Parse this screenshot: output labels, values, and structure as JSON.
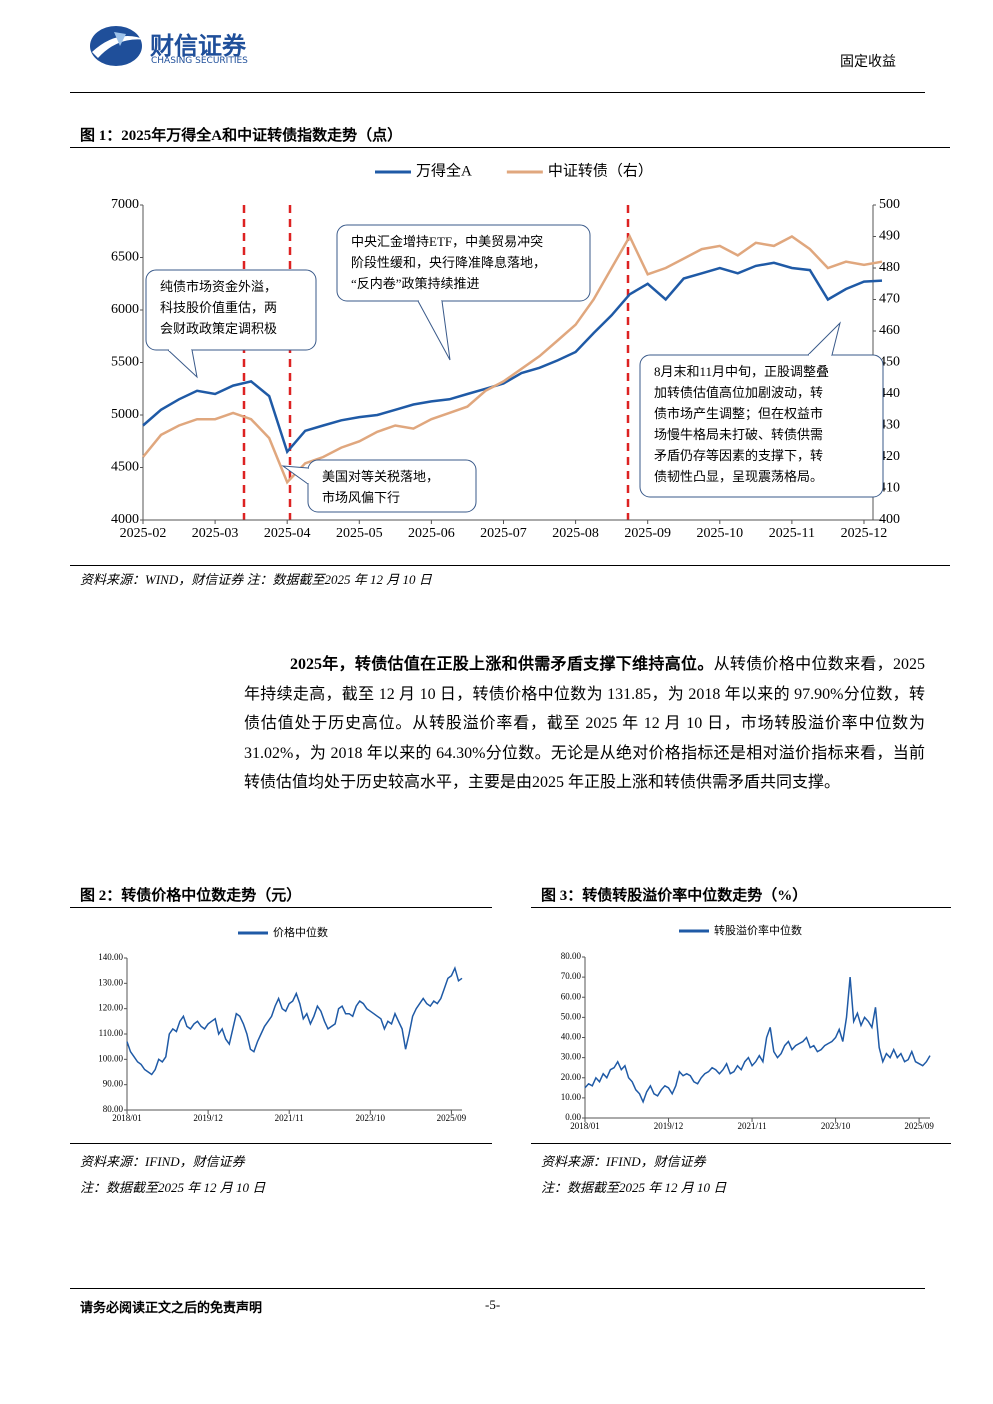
{
  "header": {
    "company": "财信证券",
    "company_en": "CHASING SECURITIES",
    "section": "固定收益"
  },
  "chart_data": [
    {
      "type": "line",
      "title": "图 1：2025年万得全A和中证转债指数走势（点）",
      "categories": [
        "2025-02",
        null,
        null,
        null,
        "2025-03",
        null,
        null,
        null,
        "2025-04",
        null,
        null,
        null,
        "2025-05",
        null,
        null,
        null,
        "2025-06",
        null,
        null,
        null,
        "2025-07",
        null,
        null,
        null,
        "2025-08",
        null,
        null,
        null,
        "2025-09",
        null,
        null,
        null,
        "2025-10",
        null,
        null,
        null,
        "2025-11",
        null,
        null,
        null,
        "2025-12",
        null
      ],
      "series": [
        {
          "name": "万得全A",
          "color": "#1f5aa6",
          "values": [
            4900,
            5050,
            5150,
            5230,
            5200,
            5280,
            5320,
            5180,
            4650,
            4850,
            4900,
            4950,
            4980,
            5000,
            5050,
            5100,
            5130,
            5150,
            5200,
            5250,
            5300,
            5400,
            5450,
            5520,
            5600,
            5780,
            5950,
            6150,
            6250,
            6100,
            6300,
            6350,
            6400,
            6350,
            6420,
            6450,
            6400,
            6380,
            6100,
            6200,
            6270,
            6280
          ]
        },
        {
          "name": "中证转债（右）",
          "color": "#e0a77e",
          "axis": "y2",
          "values": [
            420,
            427,
            430,
            432,
            432,
            434,
            432,
            426,
            412,
            418,
            420,
            423,
            425,
            428,
            430,
            429,
            432,
            434,
            436,
            441,
            444,
            448,
            452,
            457,
            462,
            470,
            480,
            490,
            478,
            480,
            483,
            486,
            487,
            484,
            488,
            487,
            490,
            486,
            480,
            482,
            481,
            482
          ]
        }
      ],
      "ylim": [
        4000,
        7000
      ],
      "yticks": [
        4000,
        4500,
        5000,
        5500,
        6000,
        6500,
        7000
      ],
      "y2lim": [
        400,
        500
      ],
      "y2ticks": [
        400,
        410,
        420,
        430,
        440,
        450,
        460,
        470,
        480,
        490,
        500
      ],
      "annotations": [
        {
          "lines": [
            "纯债市场资金外溢，",
            "科技股价值重估，两",
            "会财政政策定调积极"
          ]
        },
        {
          "lines": [
            "中央汇金增持ETF，中美贸易冲突",
            "阶段性缓和，央行降准降息落地，",
            "“反内卷”政策持续推进"
          ]
        },
        {
          "lines": [
            "美国对等关税落地，",
            "市场风偏下行"
          ]
        },
        {
          "lines": [
            "8月末和11月中旬，正股调整叠",
            "加转债估值高位加剧波动，转",
            "债市场产生调整；但在权益市",
            "场慢牛格局未打破、转债供需",
            "矛盾仍存等因素的支撑下，转",
            "债韧性凸显，呈现震荡格局。"
          ]
        }
      ],
      "notes": [
        "资料来源：WIND，财信证券 注：数据截至2025 年 12 月 10 日"
      ]
    },
    {
      "type": "line",
      "title": "图 2：转债价格中位数走势（元）",
      "categories": [
        "2018/01",
        null,
        null,
        null,
        null,
        null,
        null,
        null,
        null,
        null,
        null,
        null,
        null,
        null,
        null,
        null,
        null,
        null,
        null,
        null,
        null,
        null,
        null,
        "2019/12",
        null,
        null,
        null,
        null,
        null,
        null,
        null,
        null,
        null,
        null,
        null,
        null,
        null,
        null,
        null,
        null,
        null,
        null,
        null,
        null,
        null,
        null,
        "2021/11",
        null,
        null,
        null,
        null,
        null,
        null,
        null,
        null,
        null,
        null,
        null,
        null,
        null,
        null,
        null,
        null,
        null,
        null,
        null,
        null,
        null,
        null,
        "2023/10",
        null,
        null,
        null,
        null,
        null,
        null,
        null,
        null,
        null,
        null,
        null,
        null,
        null,
        null,
        null,
        null,
        null,
        null,
        null,
        null,
        null,
        null,
        "2025/09",
        null,
        null,
        null
      ],
      "series": [
        {
          "name": "价格中位数",
          "color": "#1f5aa6",
          "values": [
            107,
            103,
            101,
            99,
            98,
            96,
            95,
            94,
            96,
            100,
            99,
            101,
            110,
            112,
            111,
            115,
            117,
            113,
            112,
            114,
            115,
            113,
            112,
            114,
            115,
            116,
            110,
            112,
            108,
            106,
            112,
            118,
            117,
            114,
            110,
            104,
            103,
            107,
            110,
            113,
            115,
            117,
            121,
            124,
            120,
            119,
            122,
            123,
            126,
            122,
            116,
            118,
            114,
            117,
            121,
            119,
            115,
            112,
            113,
            114,
            120,
            121,
            118,
            118,
            117,
            121,
            123,
            122,
            120,
            119,
            118,
            117,
            116,
            112,
            115,
            114,
            118,
            115,
            112,
            104,
            110,
            117,
            120,
            122,
            124,
            122,
            121,
            123,
            122,
            124,
            128,
            132,
            133,
            136,
            131,
            132
          ]
        }
      ],
      "ylim": [
        80,
        140
      ],
      "yticks": [
        {
          "value": 80,
          "label": "80.00"
        },
        {
          "value": 90,
          "label": "90.00"
        },
        {
          "value": 100,
          "label": "100.00"
        },
        {
          "value": 110,
          "label": "110.00"
        },
        {
          "value": 120,
          "label": "120.00"
        },
        {
          "value": 130,
          "label": "130.00"
        },
        {
          "value": 140,
          "label": "140.00"
        }
      ],
      "notes": [
        "资料来源：IFIND，财信证券",
        "注：数据截至2025 年 12 月 10 日"
      ]
    },
    {
      "type": "line",
      "title": "图 3：转债转股溢价率中位数走势（%）",
      "categories": [
        "2018/01",
        null,
        null,
        null,
        null,
        null,
        null,
        null,
        null,
        null,
        null,
        null,
        null,
        null,
        null,
        null,
        null,
        null,
        null,
        null,
        null,
        null,
        null,
        "2019/12",
        null,
        null,
        null,
        null,
        null,
        null,
        null,
        null,
        null,
        null,
        null,
        null,
        null,
        null,
        null,
        null,
        null,
        null,
        null,
        null,
        null,
        null,
        "2021/11",
        null,
        null,
        null,
        null,
        null,
        null,
        null,
        null,
        null,
        null,
        null,
        null,
        null,
        null,
        null,
        null,
        null,
        null,
        null,
        null,
        null,
        null,
        "2023/10",
        null,
        null,
        null,
        null,
        null,
        null,
        null,
        null,
        null,
        null,
        null,
        null,
        null,
        null,
        null,
        null,
        null,
        null,
        null,
        null,
        null,
        null,
        "2025/09",
        null,
        null,
        null
      ],
      "series": [
        {
          "name": "转股溢价率中位数",
          "color": "#1f5aa6",
          "values": [
            15,
            17,
            16,
            20,
            18,
            22,
            20,
            24,
            25,
            28,
            24,
            26,
            20,
            18,
            14,
            12,
            8,
            13,
            16,
            12,
            11,
            14,
            16,
            15,
            12,
            16,
            23,
            21,
            22,
            21,
            18,
            17,
            20,
            22,
            23,
            25,
            24,
            22,
            24,
            27,
            22,
            23,
            26,
            24,
            28,
            30,
            26,
            28,
            31,
            28,
            40,
            45,
            33,
            30,
            32,
            36,
            38,
            34,
            36,
            37,
            38,
            40,
            35,
            36,
            33,
            34,
            36,
            37,
            38,
            40,
            44,
            38,
            50,
            70,
            48,
            52,
            46,
            50,
            48,
            45,
            55,
            35,
            28,
            32,
            30,
            34,
            30,
            32,
            28,
            29,
            33,
            28,
            27,
            26,
            28,
            31
          ]
        }
      ],
      "ylim": [
        0,
        80
      ],
      "yticks": [
        {
          "value": 0,
          "label": "0.00"
        },
        {
          "value": 10,
          "label": "10.00"
        },
        {
          "value": 20,
          "label": "20.00"
        },
        {
          "value": 30,
          "label": "30.00"
        },
        {
          "value": 40,
          "label": "40.00"
        },
        {
          "value": 50,
          "label": "50.00"
        },
        {
          "value": 60,
          "label": "60.00"
        },
        {
          "value": 70,
          "label": "70.00"
        },
        {
          "value": 80,
          "label": "80.00"
        }
      ],
      "notes": [
        "资料来源：IFIND，财信证券",
        "注：数据截至2025 年 12 月 10 日"
      ]
    }
  ],
  "paragraph": {
    "lead": "2025年，转债估值在正股上涨和供需矛盾支撑下维持高位。",
    "body": "从转债价格中位数来看，2025 年持续走高，截至 12 月 10 日，转债价格中位数为 131.85，为 2018 年以来的 97.90%分位数，转债估值处于历史高位。从转股溢价率看，截至 2025 年 12 月 10 日，市场转股溢价率中位数为 31.02%，为 2018 年以来的 64.30%分位数。无论是从绝对价格指标还是相对溢价指标来看，当前转债估值均处于历史较高水平，主要是由2025 年正股上涨和转债供需矛盾共同支撑。"
  },
  "footer": {
    "disclaimer": "请务必阅读正文之后的免责声明",
    "page": "-5-"
  }
}
